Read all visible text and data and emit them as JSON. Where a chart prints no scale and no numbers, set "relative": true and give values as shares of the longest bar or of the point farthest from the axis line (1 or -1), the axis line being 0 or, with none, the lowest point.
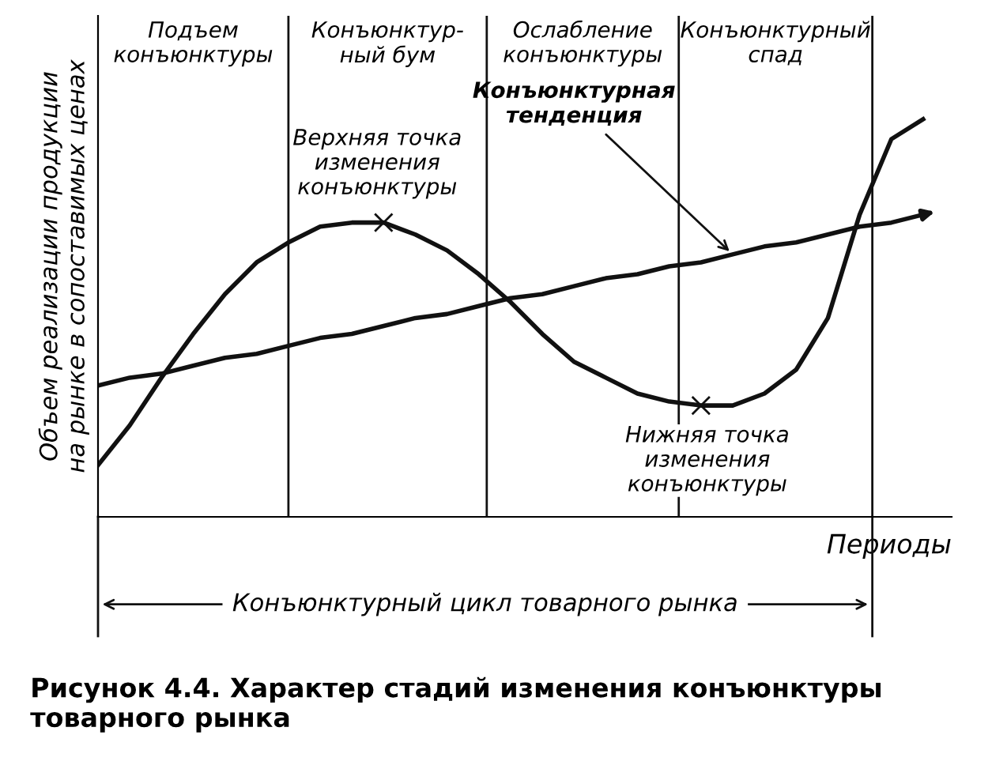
{
  "chart_data": {
    "type": "line",
    "relative": true,
    "title": "Рисунок 4.4. Характер стадий изменения конъюнктуры товарного рынка",
    "xlabel": "Периоды",
    "ylabel": "Объем реализации продукции\nна рынке в сопоставимых ценах",
    "categories": [
      null,
      null,
      null,
      null,
      null,
      null,
      null,
      null,
      null,
      null,
      null,
      null,
      null,
      null,
      null,
      null,
      null,
      null,
      null,
      null,
      null,
      null,
      null,
      null,
      null,
      null,
      null
    ],
    "series": [
      {
        "color": "#111111",
        "values": [
          0.13,
          0.23,
          0.35,
          0.46,
          0.56,
          0.64,
          0.69,
          0.73,
          0.74,
          0.74,
          0.71,
          0.67,
          0.61,
          0.54,
          0.46,
          0.39,
          0.35,
          0.31,
          0.29,
          0.28,
          0.28,
          0.31,
          0.37,
          0.5,
          0.76,
          0.95,
          1.0
        ]
      },
      {
        "name": "Конъюнктурная\nтенденция",
        "color": "#111111",
        "values": [
          0.33,
          0.35,
          0.36,
          0.38,
          0.4,
          0.41,
          0.43,
          0.45,
          0.46,
          0.48,
          0.5,
          0.51,
          0.53,
          0.55,
          0.56,
          0.58,
          0.6,
          0.61,
          0.63,
          0.64,
          0.66,
          0.68,
          0.69,
          0.71,
          0.73,
          0.74,
          0.76
        ]
      }
    ],
    "annotations": [
      "Подъем\nконъюнктуры",
      "Конъюнктур-\nный бум",
      "Ослабление\nконъюнктуры",
      "Конъюнктурный\nспад",
      "Верхняя точка\nизменения\nконъюнктуры",
      "Нижняя точка\nизменения\nконъюнктуры",
      "Конъюнктурный цикл товарного рынка"
    ],
    "line_style": "solid",
    "grid": false,
    "legend": false
  }
}
